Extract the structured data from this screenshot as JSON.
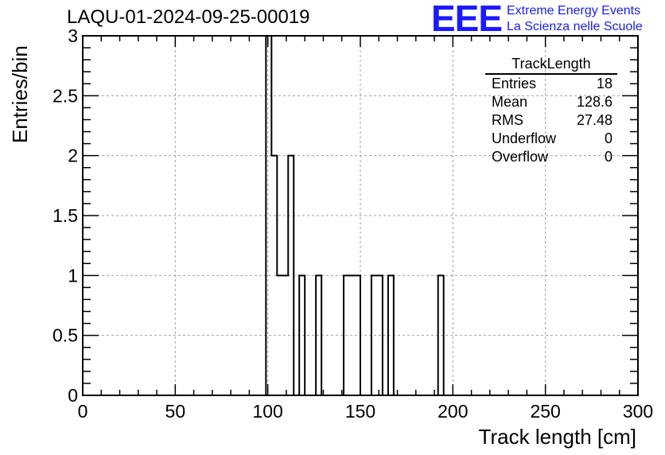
{
  "chart_data": {
    "type": "bar",
    "title": "LAQU-01-2024-09-25-00019",
    "xlabel": "Track length [cm]",
    "ylabel": "Entries/bin",
    "xlim": [
      0,
      300
    ],
    "ylim": [
      0,
      3
    ],
    "grid": true,
    "bin_width": 3,
    "x_ticks": [
      "0",
      "50",
      "100",
      "150",
      "200",
      "250",
      "300"
    ],
    "y_ticks": [
      "0",
      "0.5",
      "1",
      "1.5",
      "2",
      "2.5",
      "3"
    ],
    "bins": [
      {
        "x": 99,
        "y": 3
      },
      {
        "x": 102,
        "y": 2
      },
      {
        "x": 105,
        "y": 1
      },
      {
        "x": 108,
        "y": 1
      },
      {
        "x": 111,
        "y": 2
      },
      {
        "x": 117,
        "y": 1
      },
      {
        "x": 126,
        "y": 1
      },
      {
        "x": 141,
        "y": 1
      },
      {
        "x": 144,
        "y": 1
      },
      {
        "x": 147,
        "y": 1
      },
      {
        "x": 156,
        "y": 1
      },
      {
        "x": 159,
        "y": 1
      },
      {
        "x": 165,
        "y": 1
      },
      {
        "x": 192,
        "y": 1
      }
    ],
    "stats": {
      "title": "TrackLength",
      "rows": [
        {
          "label": "Entries",
          "value": "18"
        },
        {
          "label": "Mean",
          "value": "128.6"
        },
        {
          "label": "RMS",
          "value": "27.48"
        },
        {
          "label": "Underflow",
          "value": "0"
        },
        {
          "label": "Overflow",
          "value": "0"
        }
      ]
    }
  },
  "logo": {
    "mark": "EEE",
    "line1": "Extreme Energy Events",
    "line2": "La Scienza nelle Scuole",
    "color": "#1a1aff"
  }
}
